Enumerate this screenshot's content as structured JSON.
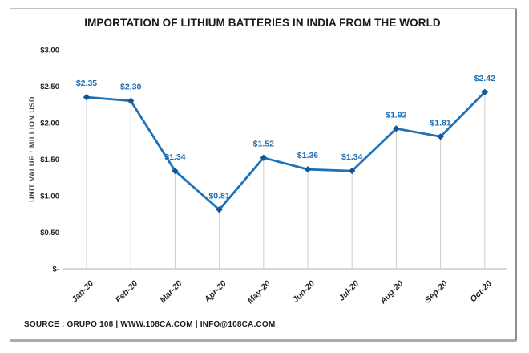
{
  "chart_data": {
    "type": "line",
    "title": "IMPORTATION OF LITHIUM BATTERIES IN INDIA FROM THE WORLD",
    "ylabel": "UNIT VALUE : MILLION USD",
    "xlabel": "",
    "categories": [
      "Jan-20",
      "Feb-20",
      "Mar-20",
      "Apr-20",
      "May-20",
      "Jun-20",
      "Jul-20",
      "Aug-20",
      "Sep-20",
      "Oct-20"
    ],
    "values": [
      2.35,
      2.3,
      1.34,
      0.81,
      1.52,
      1.36,
      1.34,
      1.92,
      1.81,
      2.42
    ],
    "data_labels": [
      "$2.35",
      "$2.30",
      "$1.34",
      "$0.81",
      "$1.52",
      "$1.36",
      "$1.34",
      "$1.92",
      "$1.81",
      "$2.42"
    ],
    "ylim": [
      0,
      3
    ],
    "yticks": {
      "values": [
        3.0,
        2.5,
        2.0,
        1.5,
        1.0,
        0.5,
        0
      ],
      "labels": [
        "$3.00",
        "$2.50",
        "$2.00",
        "$1.50",
        "$1.00",
        "$0.50",
        "$-"
      ]
    },
    "legend": "none",
    "grid": "off",
    "drop_lines": true,
    "marker_shape": "diamond",
    "colors": {
      "line": "#1e72b8",
      "marker": "#15569b",
      "data_label": "#1f6fb5",
      "axis": "#bfbfbf",
      "drop_line": "#cdcdcd",
      "tick_text": "#262626",
      "title_text": "#1a1a1a"
    }
  },
  "footer": {
    "source": "SOURCE : GRUPO 108 | WWW.108CA.COM | INFO@108CA.COM"
  }
}
